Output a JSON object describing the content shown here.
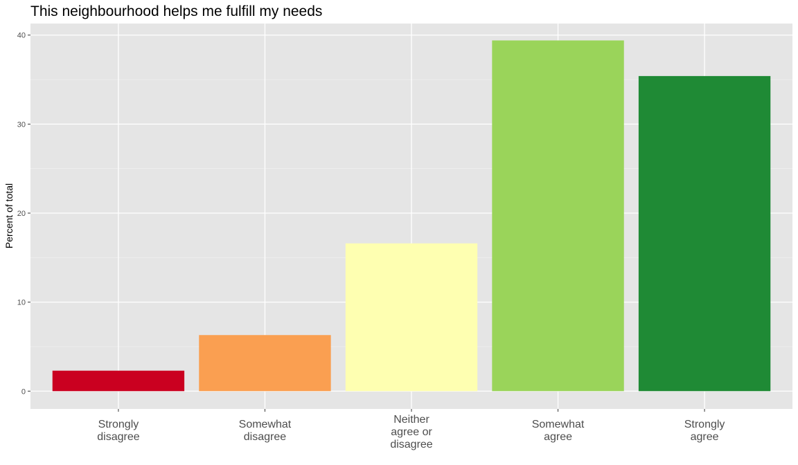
{
  "chart_data": {
    "type": "bar",
    "title": "This neighbourhood helps me fulfill my needs",
    "xlabel": "",
    "ylabel": "Percent of total",
    "categories": [
      [
        "Strongly",
        "disagree"
      ],
      [
        "Somewhat",
        "disagree"
      ],
      [
        "Neither",
        "agree or",
        "disagree"
      ],
      [
        "Somewhat",
        "agree"
      ],
      [
        "Strongly",
        "agree"
      ]
    ],
    "values": [
      2.3,
      6.3,
      16.6,
      39.4,
      35.4
    ],
    "colors": [
      "#ca0020",
      "#fa9f51",
      "#feffb1",
      "#9ad45a",
      "#1f8a35"
    ],
    "ylim": [
      -2,
      41.3
    ],
    "yticks": [
      0,
      10,
      20,
      30,
      40
    ],
    "grid": true,
    "legend": "none",
    "panel_background": "#e5e5e5"
  }
}
